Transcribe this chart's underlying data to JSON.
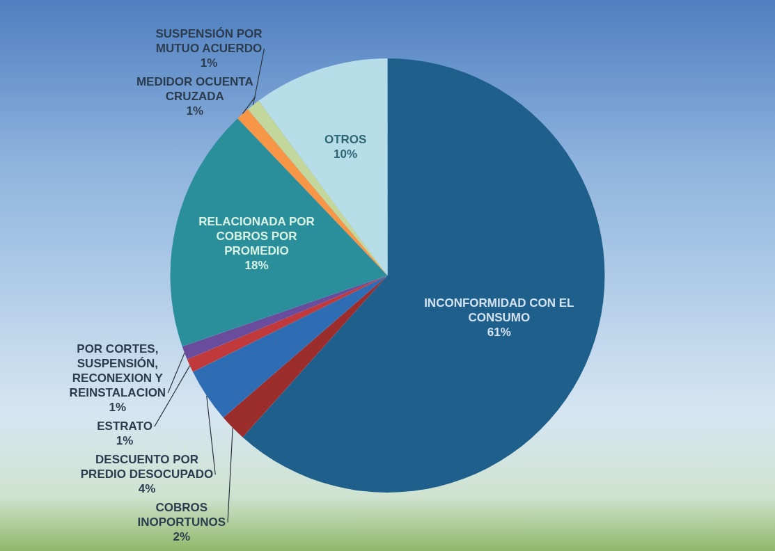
{
  "chart_data": {
    "type": "pie",
    "categories": [
      "INCONFORMIDAD CON EL CONSUMO",
      "COBROS INOPORTUNOS",
      "DESCUENTO POR PREDIO DESOCUPADO",
      "ESTRATO",
      "POR CORTES, SUSPENSIÓN, RECONEXION Y REINSTALACION",
      "RELACIONADA POR COBROS POR PROMEDIO",
      "MEDIDOR OCUENTA CRUZADA",
      "SUSPENSIÓN POR MUTUO ACUERDO",
      "OTROS"
    ],
    "values": [
      61,
      2,
      4,
      1,
      1,
      18,
      1,
      1,
      10
    ],
    "colors": [
      "#1f5f8b",
      "#9b2d2d",
      "#2e6db4",
      "#c0393b",
      "#6a4c9c",
      "#2a8f9b",
      "#f79646",
      "#c3d69b",
      "#b7dde8"
    ],
    "value_labels": [
      "61%",
      "2%",
      "4%",
      "1%",
      "1%",
      "18%",
      "1%",
      "1%",
      "10%"
    ],
    "legend": false
  }
}
